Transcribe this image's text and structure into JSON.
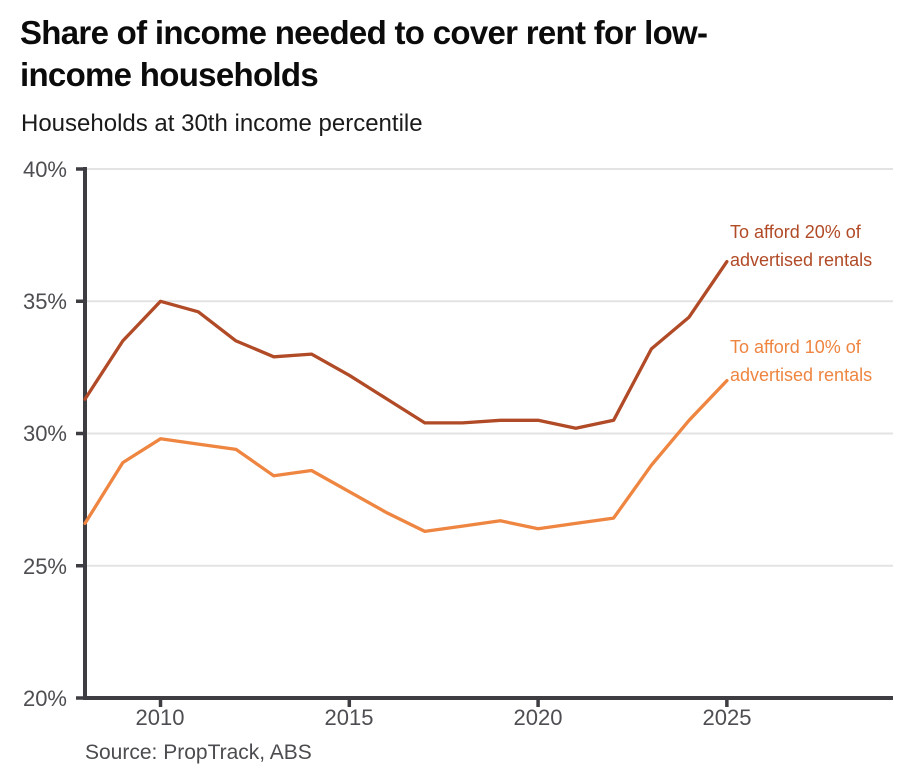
{
  "header": {
    "title": "Share of income needed to cover rent for low-income households",
    "subtitle": "Households at 30th income percentile"
  },
  "axis": {
    "y_labels": [
      "40%",
      "35%",
      "30%",
      "25%",
      "20%"
    ],
    "x_labels": [
      "2010",
      "2015",
      "2020",
      "2025"
    ]
  },
  "annotations": {
    "series20_line1": "To afford 20% of",
    "series20_line2": "advertised rentals",
    "series10_line1": "To afford 10% of",
    "series10_line2": "advertised rentals"
  },
  "source": "Source: PropTrack, ABS",
  "colors": {
    "series20": "#b14a26",
    "series10": "#ee8540",
    "axis_line": "#3d3d42",
    "grid_line": "#e3e3e3",
    "tick_label": "#4d4d52",
    "title": "#0b0b0b"
  },
  "chart_data": {
    "type": "line",
    "title": "Share of income needed to cover rent for low-income households",
    "subtitle": "Households at 30th income percentile",
    "xlabel": "",
    "ylabel": "",
    "x": [
      2008,
      2009,
      2010,
      2011,
      2012,
      2013,
      2014,
      2015,
      2016,
      2017,
      2018,
      2019,
      2020,
      2021,
      2022,
      2023,
      2024,
      2025
    ],
    "series": [
      {
        "name": "To afford 20% of advertised rentals",
        "color": "#b14a26",
        "values": [
          31.3,
          33.5,
          35.0,
          34.6,
          33.5,
          32.9,
          33.0,
          32.2,
          31.3,
          30.4,
          30.4,
          30.5,
          30.5,
          30.2,
          30.5,
          33.2,
          34.4,
          36.5
        ]
      },
      {
        "name": "To afford 10% of advertised rentals",
        "color": "#ee8540",
        "values": [
          26.6,
          28.9,
          29.8,
          29.6,
          29.4,
          28.4,
          28.6,
          27.8,
          27.0,
          26.3,
          26.5,
          26.7,
          26.4,
          26.6,
          26.8,
          28.8,
          30.5,
          32.0
        ]
      }
    ],
    "ylim": [
      20,
      40
    ],
    "xlim": [
      2008,
      2029.4
    ],
    "y_ticks": [
      20,
      25,
      30,
      35,
      40
    ],
    "x_ticks": [
      2010,
      2015,
      2020,
      2025
    ],
    "grid": "horizontal",
    "legend_position": "inline-labels-right"
  }
}
